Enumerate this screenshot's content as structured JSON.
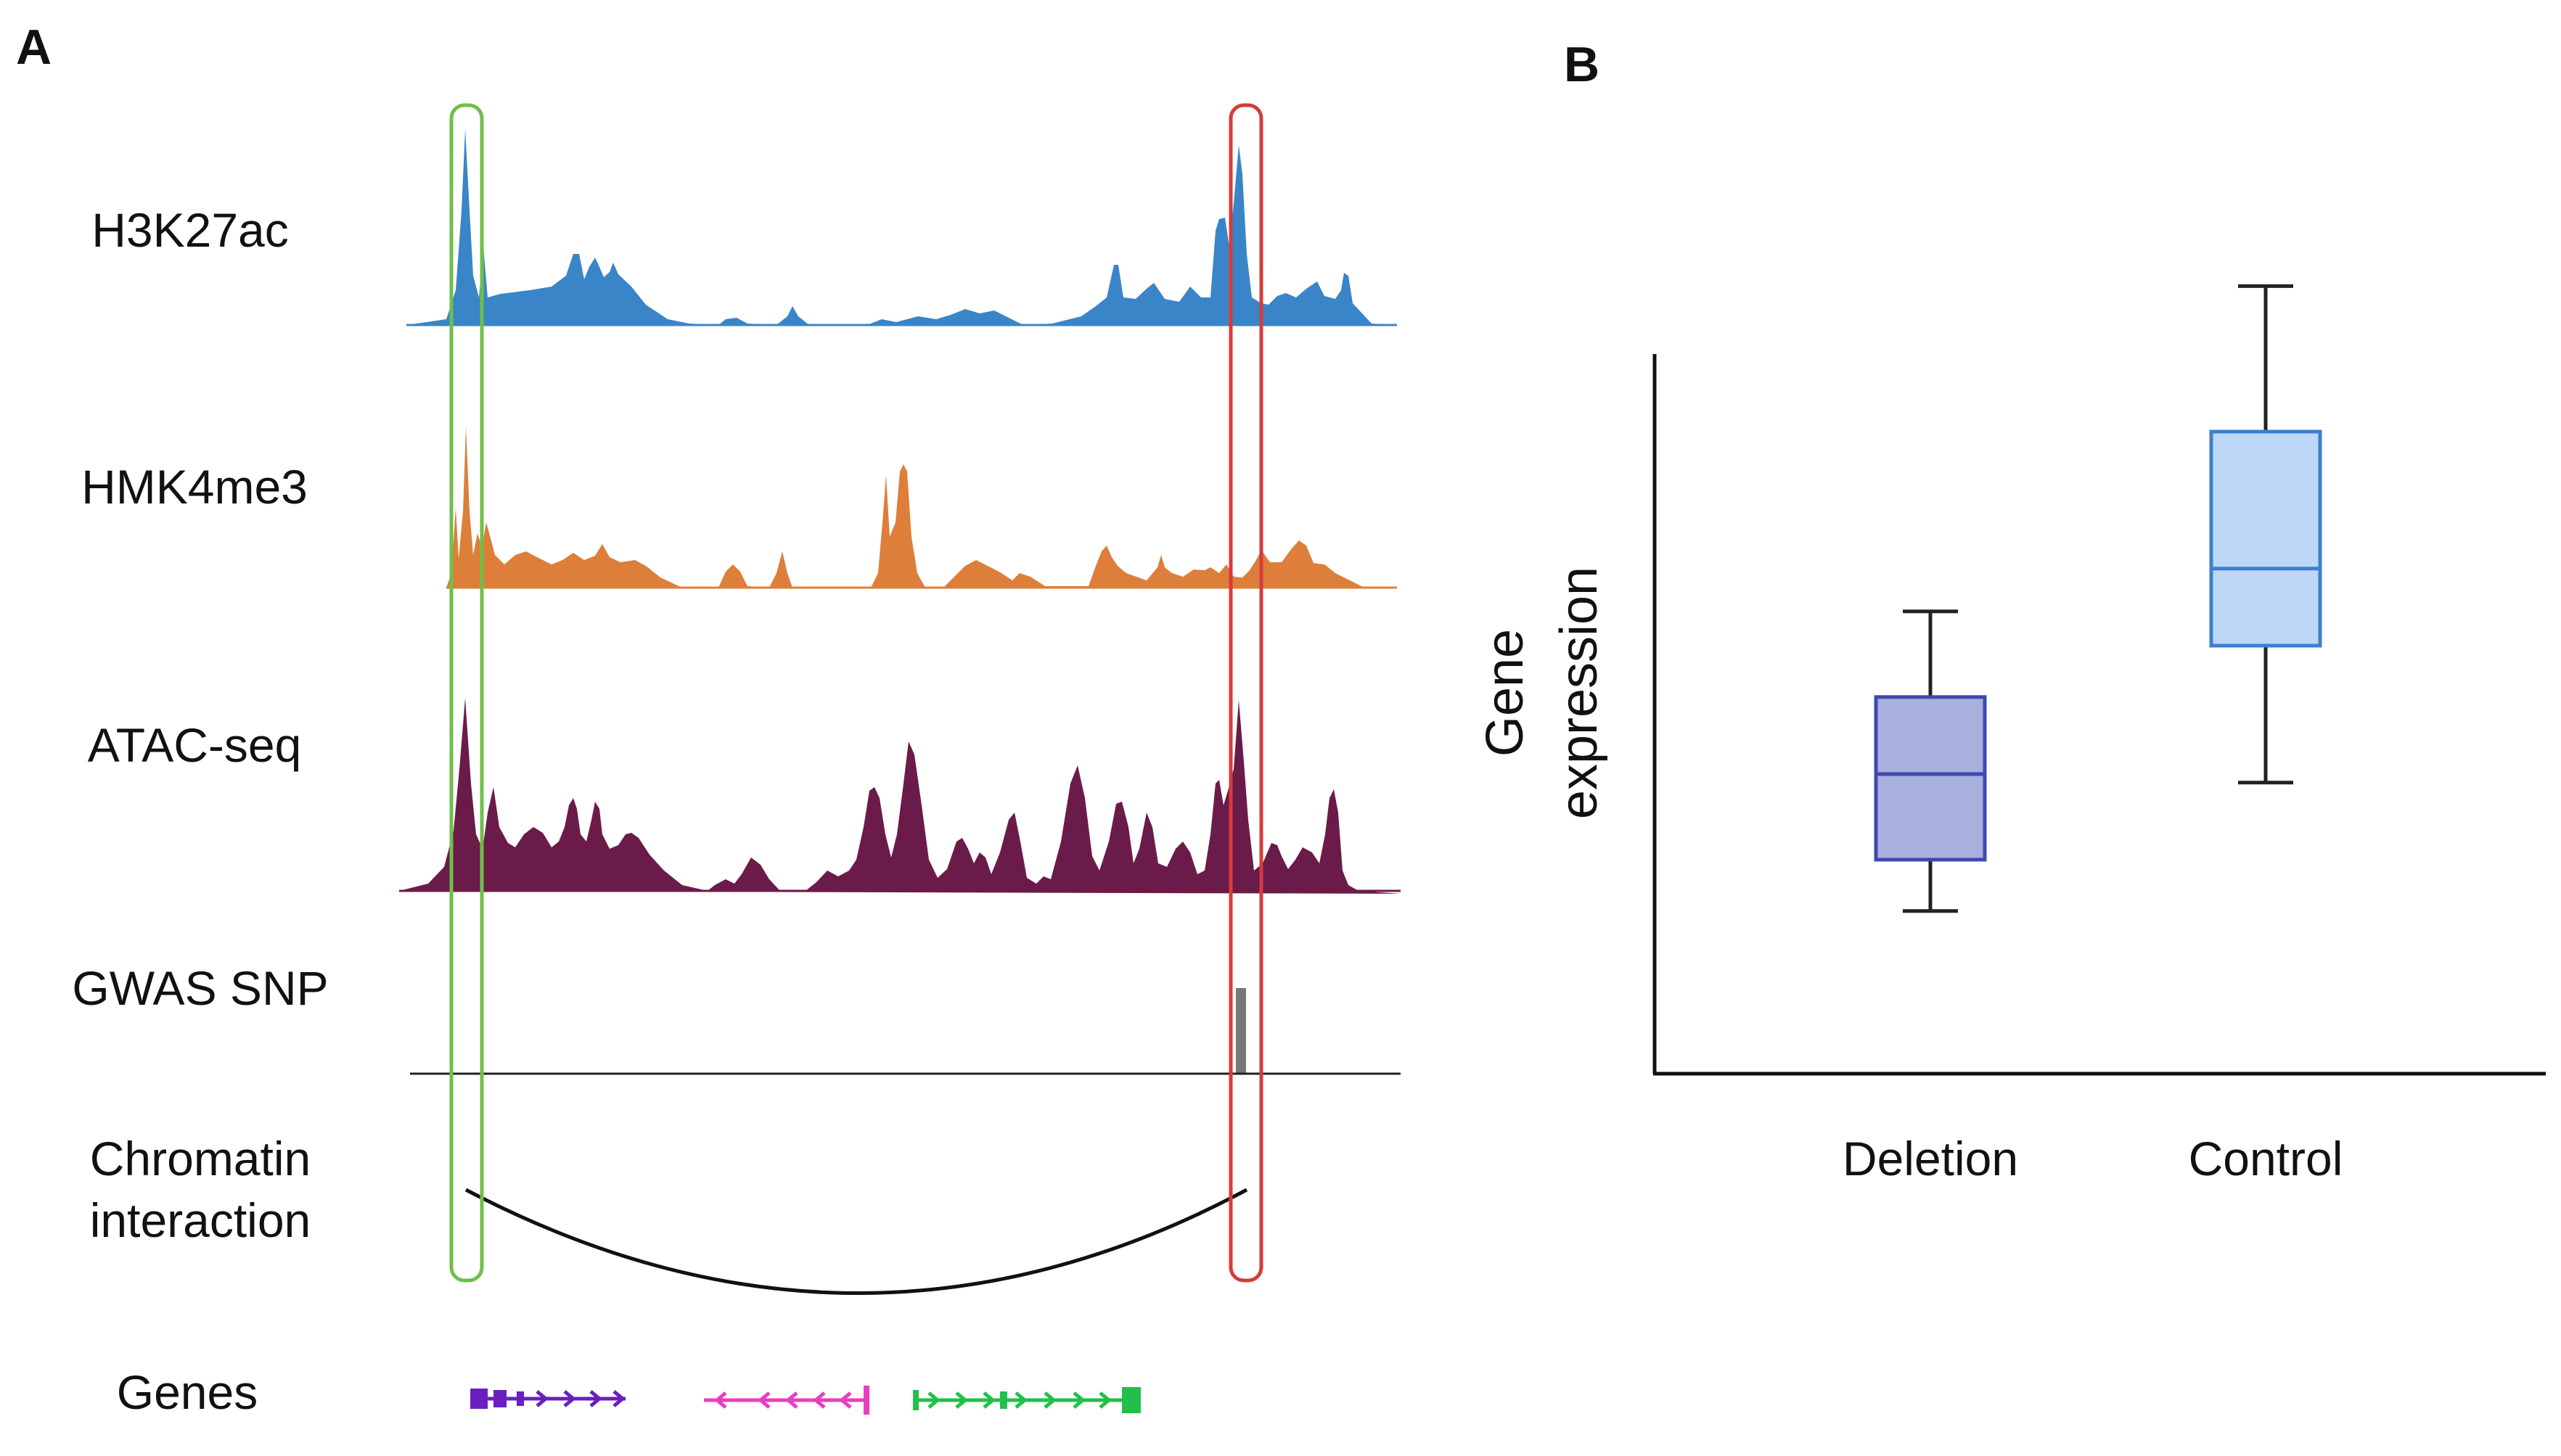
{
  "panel_a": {
    "label": "A",
    "tracks": [
      {
        "name": "H3K27ac",
        "color": "#3a85c8"
      },
      {
        "name": "HMK4me3",
        "color": "#dd7f3a"
      },
      {
        "name": "ATAC-seq",
        "color": "#6b1b4a"
      }
    ],
    "gwas_label": "GWAS SNP",
    "gwas_color": "#777777",
    "interaction_label_line1": "Chromatin",
    "interaction_label_line2": "interaction",
    "genes_label": "Genes",
    "gene_colors": [
      "#6a1fbf",
      "#e83fbf",
      "#22c04a"
    ],
    "highlight_colors": {
      "left": "#6fbf4a",
      "right": "#d83a3a"
    }
  },
  "panel_b": {
    "label": "B",
    "chart_data": {
      "type": "boxplot",
      "ylabel_line1": "Gene",
      "ylabel_line2": "expression",
      "xlabel": "",
      "ylim": [
        0,
        100
      ],
      "categories": [
        "Deletion",
        "Control"
      ],
      "boxes": [
        {
          "name": "Deletion",
          "min": 19,
          "q1": 25,
          "median": 35,
          "q3": 44,
          "max": 54,
          "fill": "#a8b0de",
          "stroke": "#3f49b0"
        },
        {
          "name": "Control",
          "min": 34,
          "q1": 50,
          "median": 59,
          "q3": 75,
          "max": 92,
          "fill": "#bcd8f6",
          "stroke": "#3d7fd0"
        }
      ]
    }
  }
}
